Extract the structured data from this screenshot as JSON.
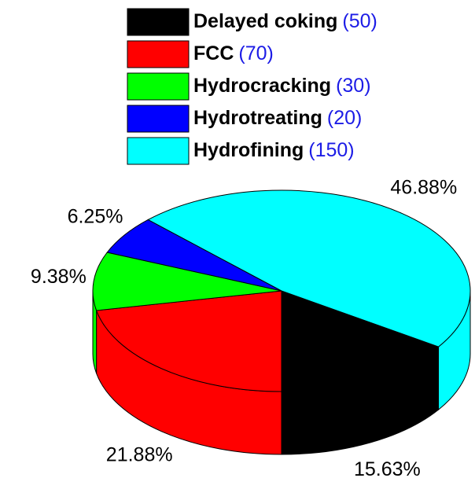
{
  "chart_data": {
    "type": "pie3d",
    "categories": [
      "Delayed coking",
      "FCC",
      "Hydrocracking",
      "Hydrotreating",
      "Hydrofining"
    ],
    "values": [
      50,
      70,
      30,
      20,
      150
    ],
    "value_labels": [
      "(50)",
      "(70)",
      "(30)",
      "(20)",
      "(150)"
    ],
    "percentages": [
      15.63,
      21.88,
      9.38,
      6.25,
      46.88
    ],
    "percentage_labels": [
      "15.63%",
      "21.88%",
      "9.38%",
      "6.25%",
      "46.88%"
    ],
    "colors": [
      "#000000",
      "#ff0000",
      "#00ff00",
      "#0000ff",
      "#00ffff"
    ],
    "value_label_color": "#1c1ce6",
    "legend": "top"
  }
}
